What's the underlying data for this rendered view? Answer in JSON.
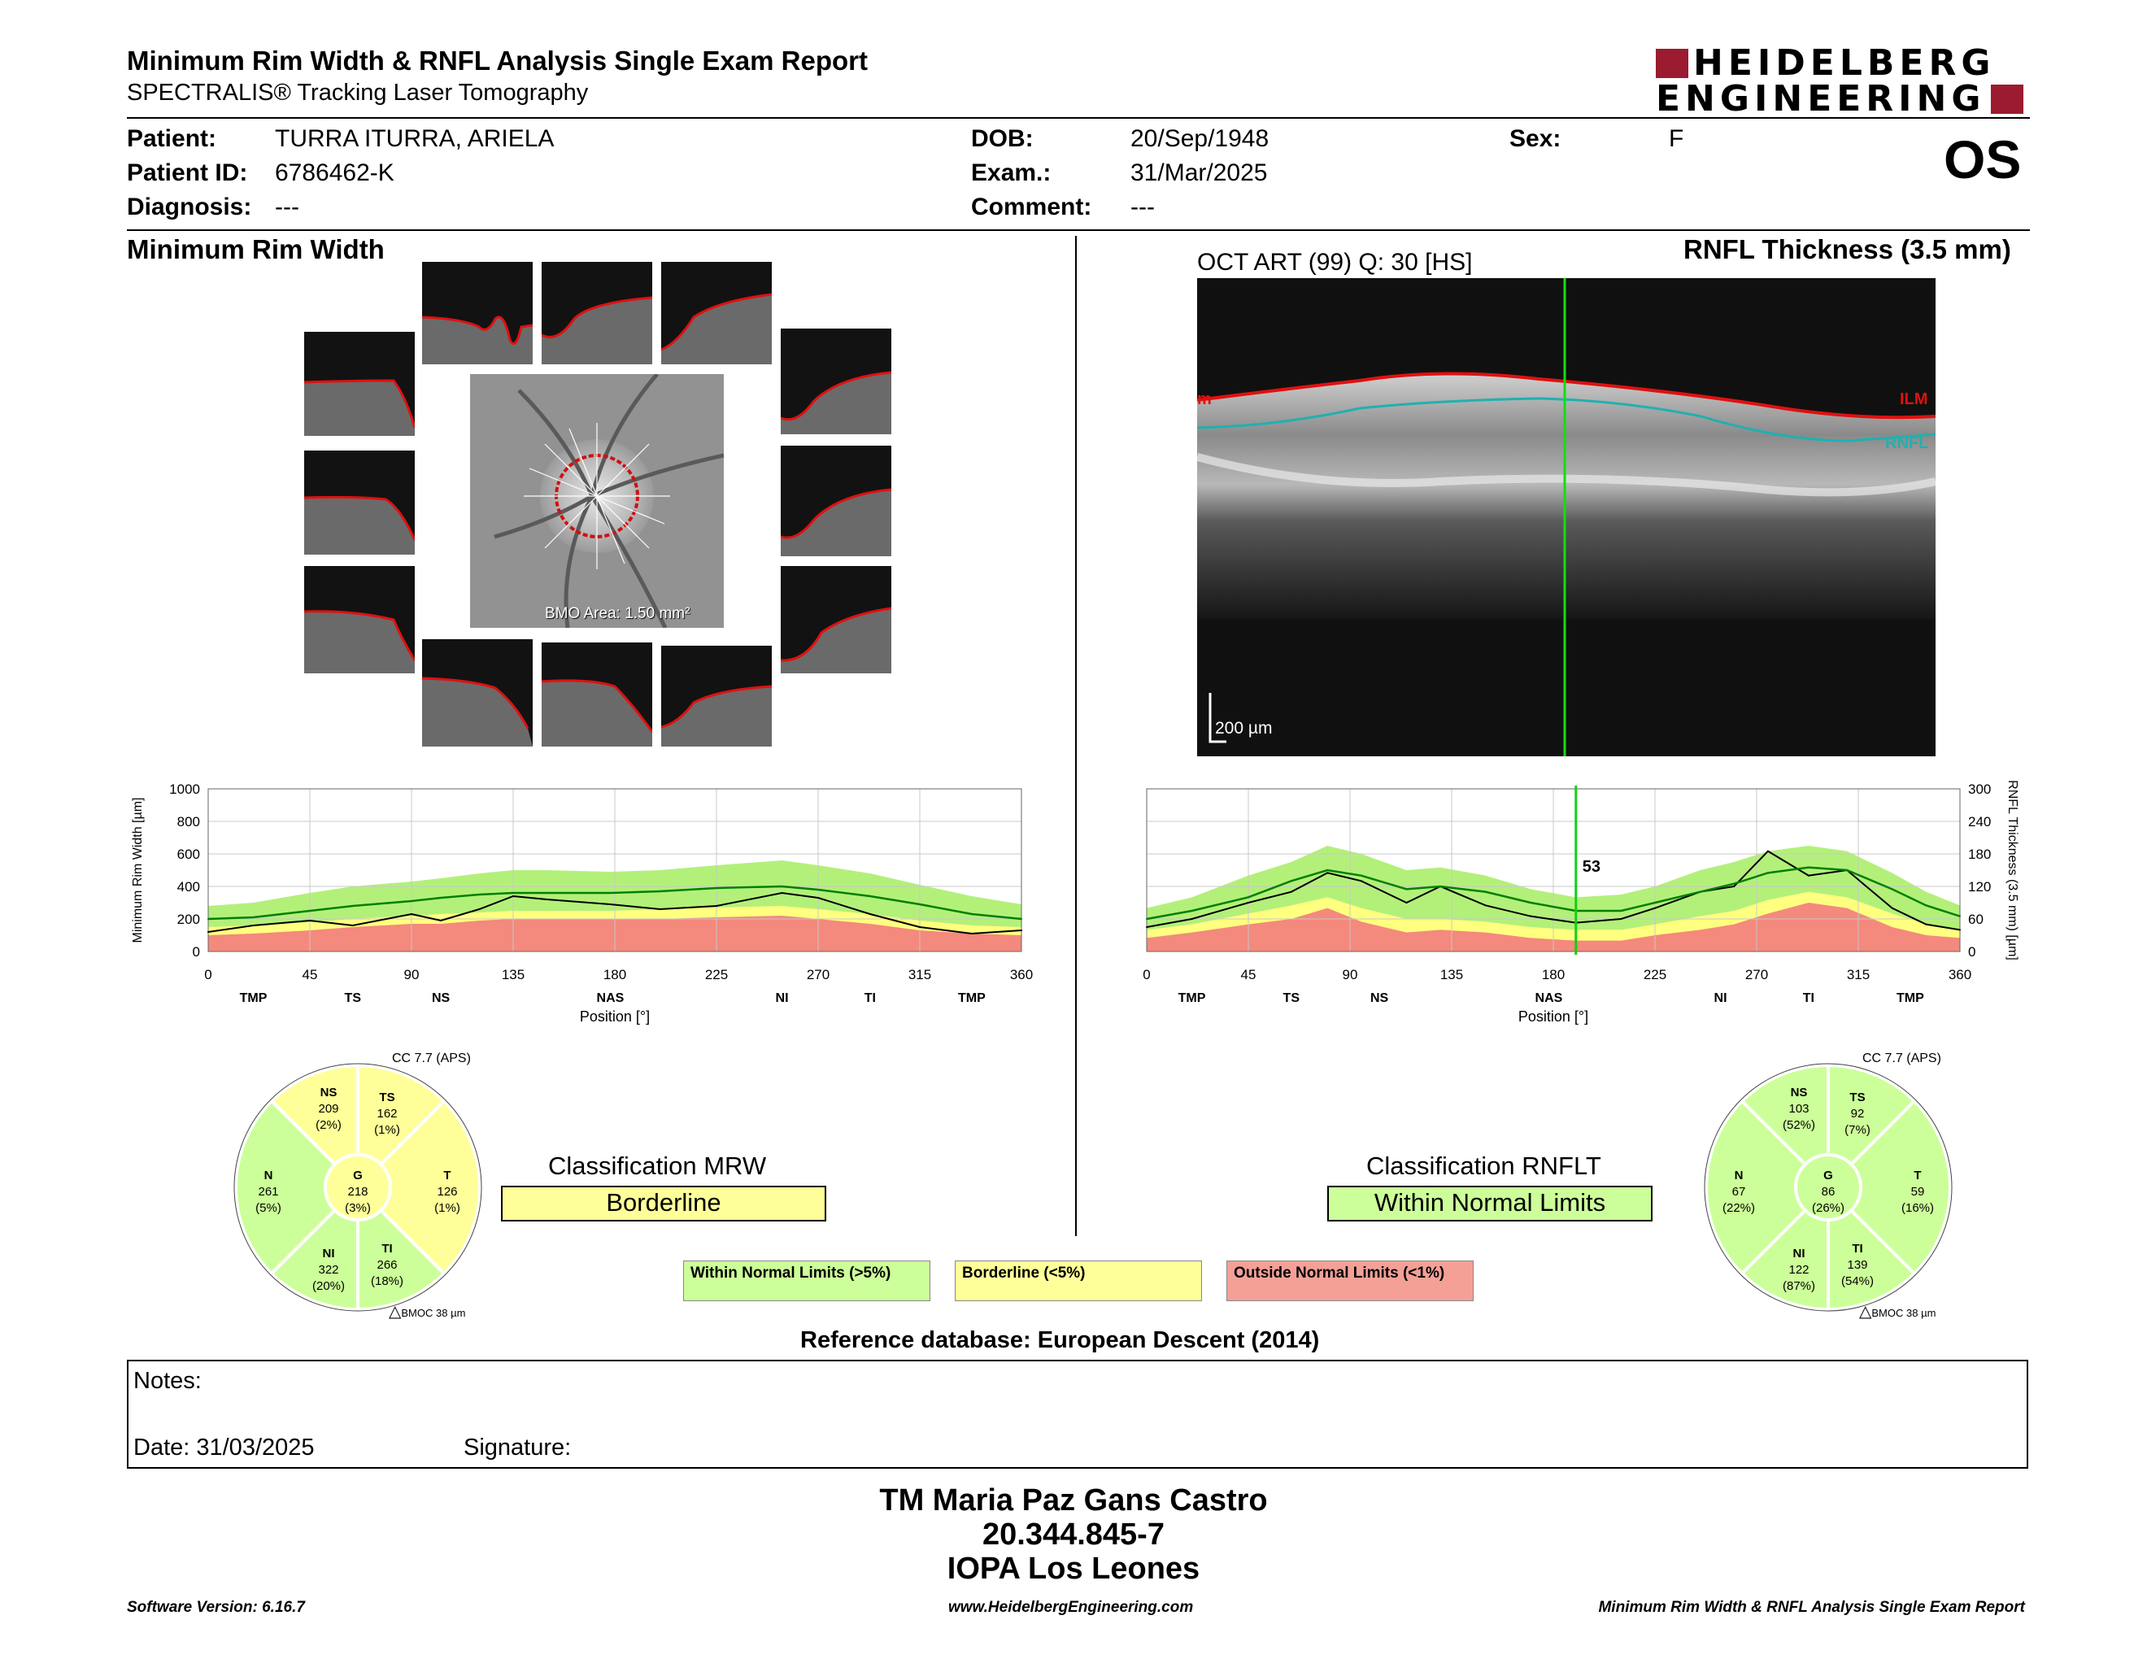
{
  "report": {
    "title": "Minimum Rim Width & RNFL Analysis Single Exam Report",
    "subtitle": "SPECTRALIS® Tracking Laser Tomography",
    "brand_line1": "HEIDELBERG",
    "brand_line2": "ENGINEERING",
    "eye": "OS",
    "brand_color": "#9b1b30"
  },
  "patient": {
    "name_label": "Patient:",
    "name": "TURRA ITURRA, ARIELA",
    "id_label": "Patient ID:",
    "id": "6786462-K",
    "diagnosis_label": "Diagnosis:",
    "diagnosis": "---",
    "dob_label": "DOB:",
    "dob": "20/Sep/1948",
    "exam_label": "Exam.:",
    "exam": "31/Mar/2025",
    "comment_label": "Comment:",
    "comment": "---",
    "sex_label": "Sex:",
    "sex": "F"
  },
  "mrw": {
    "section_title": "Minimum Rim Width",
    "bmo_area": "BMO Area: 1.50 mm²",
    "classification_title": "Classification MRW",
    "classification": "Borderline",
    "classification_color": "#ffff99",
    "cc_label": "CC 7.7 (APS)",
    "bmoc_label": "BMOC 38 µm",
    "sectors": {
      "NS": {
        "label": "NS",
        "value": "209",
        "pct": "(2%)",
        "color": "#ffff99"
      },
      "TS": {
        "label": "TS",
        "value": "162",
        "pct": "(1%)",
        "color": "#ffff99"
      },
      "N": {
        "label": "N",
        "value": "261",
        "pct": "(5%)",
        "color": "#ccff99"
      },
      "G": {
        "label": "G",
        "value": "218",
        "pct": "(3%)",
        "color": "#ffff99"
      },
      "T": {
        "label": "T",
        "value": "126",
        "pct": "(1%)",
        "color": "#ffff99"
      },
      "NI": {
        "label": "NI",
        "value": "322",
        "pct": "(20%)",
        "color": "#ccff99"
      },
      "TI": {
        "label": "TI",
        "value": "266",
        "pct": "(18%)",
        "color": "#ccff99"
      }
    }
  },
  "rnfl": {
    "section_title": "RNFL Thickness (3.5 mm)",
    "oct_label": "OCT ART (99) Q: 30 [HS]",
    "ilm_label": "ILM",
    "rnfl_label": "RNFL",
    "ilm_cut_label": "m",
    "scale_label": "200 µm",
    "cursor_value": "53",
    "classification_title": "Classification RNFLT",
    "classification": "Within Normal Limits",
    "classification_color": "#ccff99",
    "cc_label": "CC 7.7 (APS)",
    "bmoc_label": "BMOC 38 µm",
    "sectors": {
      "NS": {
        "label": "NS",
        "value": "103",
        "pct": "(52%)",
        "color": "#ccff99"
      },
      "TS": {
        "label": "TS",
        "value": "92",
        "pct": "(7%)",
        "color": "#ccff99"
      },
      "N": {
        "label": "N",
        "value": "67",
        "pct": "(22%)",
        "color": "#ccff99"
      },
      "G": {
        "label": "G",
        "value": "86",
        "pct": "(26%)",
        "color": "#ccff99"
      },
      "T": {
        "label": "T",
        "value": "59",
        "pct": "(16%)",
        "color": "#ccff99"
      },
      "NI": {
        "label": "NI",
        "value": "122",
        "pct": "(87%)",
        "color": "#ccff99"
      },
      "TI": {
        "label": "TI",
        "value": "139",
        "pct": "(54%)",
        "color": "#ccff99"
      }
    }
  },
  "legend": {
    "wnl": "Within Normal Limits (>5%)",
    "bl": "Borderline (<5%)",
    "onl": "Outside Normal Limits (<1%)",
    "wnl_color": "#ccff99",
    "bl_color": "#ffff99",
    "onl_color": "#f4a097"
  },
  "reference_db": "Reference database: European Descent (2014)",
  "notes": {
    "notes_label": "Notes:",
    "date_label": "Date: 31/03/2025",
    "signature_label": "Signature:"
  },
  "signer": {
    "name": "TM Maria Paz Gans Castro",
    "rut": "20.344.845-7",
    "place": "IOPA Los Leones"
  },
  "footer": {
    "left": "Software Version: 6.16.7",
    "center": "www.HeidelbergEngineering.com",
    "right": "Minimum Rim Width & RNFL Analysis Single Exam Report"
  },
  "chart_data": [
    {
      "type": "line",
      "title": "",
      "ylabel": "Minimum Rim Width [µm]",
      "xlabel": "Position [°]",
      "xlim": [
        0,
        360
      ],
      "ylim": [
        0,
        1000
      ],
      "xticks": [
        0,
        45,
        90,
        135,
        180,
        225,
        270,
        315,
        360
      ],
      "yticks": [
        0,
        200,
        400,
        600,
        800,
        1000
      ],
      "sector_labels": [
        {
          "x": 20,
          "label": "TMP"
        },
        {
          "x": 64,
          "label": "TS"
        },
        {
          "x": 103,
          "label": "NS"
        },
        {
          "x": 178,
          "label": "NAS"
        },
        {
          "x": 254,
          "label": "NI"
        },
        {
          "x": 293,
          "label": "TI"
        },
        {
          "x": 338,
          "label": "TMP"
        }
      ],
      "x": [
        0,
        20,
        45,
        64,
        90,
        103,
        120,
        135,
        150,
        178,
        200,
        225,
        254,
        270,
        293,
        315,
        338,
        360
      ],
      "series": [
        {
          "values": [
            120,
            160,
            190,
            160,
            230,
            190,
            260,
            340,
            320,
            290,
            260,
            280,
            360,
            330,
            230,
            150,
            110,
            130
          ],
          "color": "#000000"
        },
        {
          "values": [
            200,
            210,
            250,
            280,
            310,
            330,
            350,
            360,
            360,
            360,
            370,
            390,
            400,
            380,
            340,
            290,
            230,
            200
          ],
          "color": "#008000"
        }
      ],
      "bands": {
        "red_top": [
          100,
          110,
          130,
          150,
          170,
          170,
          190,
          200,
          200,
          200,
          200,
          210,
          220,
          200,
          170,
          130,
          110,
          100
        ],
        "yellow_top": [
          150,
          160,
          180,
          200,
          220,
          230,
          240,
          250,
          250,
          250,
          260,
          270,
          280,
          260,
          230,
          190,
          160,
          150
        ],
        "green_top": [
          280,
          300,
          360,
          400,
          430,
          450,
          480,
          500,
          500,
          490,
          500,
          530,
          560,
          530,
          480,
          410,
          340,
          290
        ]
      }
    },
    {
      "type": "line",
      "title": "",
      "ylabel": "RNFL Thickness (3.5 mm) [µm]",
      "xlabel": "Position [°]",
      "xlim": [
        0,
        360
      ],
      "ylim": [
        0,
        300
      ],
      "xticks": [
        0,
        45,
        90,
        135,
        180,
        225,
        270,
        315,
        360
      ],
      "yticks": [
        0,
        60,
        120,
        180,
        240,
        300
      ],
      "cursor_x": 190,
      "sector_labels": [
        {
          "x": 20,
          "label": "TMP"
        },
        {
          "x": 64,
          "label": "TS"
        },
        {
          "x": 103,
          "label": "NS"
        },
        {
          "x": 178,
          "label": "NAS"
        },
        {
          "x": 254,
          "label": "NI"
        },
        {
          "x": 293,
          "label": "TI"
        },
        {
          "x": 338,
          "label": "TMP"
        }
      ],
      "x": [
        0,
        20,
        45,
        64,
        80,
        95,
        115,
        130,
        150,
        170,
        190,
        210,
        225,
        245,
        260,
        275,
        293,
        310,
        330,
        345,
        360
      ],
      "series": [
        {
          "values": [
            45,
            60,
            90,
            110,
            145,
            130,
            90,
            120,
            85,
            65,
            53,
            60,
            80,
            110,
            120,
            185,
            140,
            150,
            80,
            50,
            40
          ],
          "color": "#000000"
        },
        {
          "values": [
            60,
            75,
            100,
            130,
            150,
            140,
            115,
            120,
            110,
            90,
            75,
            75,
            90,
            110,
            125,
            145,
            155,
            150,
            115,
            85,
            65
          ],
          "color": "#008000"
        }
      ],
      "bands": {
        "red_top": [
          25,
          35,
          50,
          60,
          80,
          55,
          35,
          40,
          35,
          25,
          20,
          20,
          30,
          40,
          50,
          70,
          90,
          80,
          45,
          30,
          25
        ],
        "yellow_top": [
          40,
          50,
          70,
          85,
          100,
          80,
          60,
          60,
          55,
          45,
          40,
          40,
          50,
          65,
          75,
          95,
          110,
          100,
          70,
          50,
          40
        ],
        "green_top": [
          80,
          100,
          140,
          165,
          195,
          180,
          150,
          155,
          140,
          115,
          100,
          105,
          120,
          150,
          165,
          185,
          195,
          185,
          145,
          110,
          85
        ]
      }
    }
  ]
}
